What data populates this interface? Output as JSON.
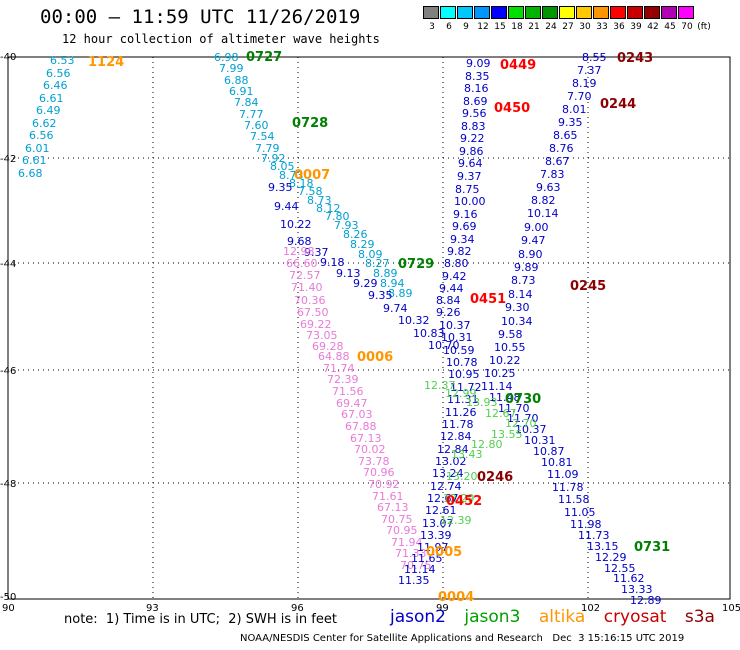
{
  "header": {
    "title": "00:00 – 11:59 UTC 11/26/2019",
    "subtitle": "12 hour collection of altimeter wave heights"
  },
  "colorbar": {
    "labels": [
      "3",
      "6",
      "9",
      "12",
      "15",
      "18",
      "21",
      "24",
      "27",
      "30",
      "33",
      "36",
      "39",
      "42",
      "45",
      "70",
      "(ft)"
    ],
    "colors": [
      "#808080",
      "#00ffff",
      "#00c8ff",
      "#0096ff",
      "#0000ff",
      "#00e000",
      "#00b400",
      "#009600",
      "#ffff00",
      "#ffc800",
      "#ff9600",
      "#ff0000",
      "#c80000",
      "#960000",
      "#b400b4",
      "#ff00ff",
      "#ffffff"
    ]
  },
  "axes": {
    "lat_labels": [
      "-40",
      "-42",
      "-44",
      "-46",
      "-48",
      "-50"
    ],
    "lon_labels": [
      "90",
      "93",
      "96",
      "99",
      "102",
      "105"
    ]
  },
  "colors": {
    "jason2": "#0000c8",
    "jason3": "#00a000",
    "altika": "#ff9600",
    "cryosat": "#c80000",
    "s3a": "#8b0000",
    "cyan": "#00a0d0",
    "pink": "#e87ad8",
    "lightgreen": "#50d050",
    "darkgreen": "#008000"
  },
  "time_tags": [
    {
      "text": "1124",
      "color": "#ff9600"
    },
    {
      "text": "0727",
      "color": "#008000"
    },
    {
      "text": "0728",
      "color": "#008000"
    },
    {
      "text": "0007",
      "color": "#ff9600"
    },
    {
      "text": "0729",
      "color": "#008000"
    },
    {
      "text": "0006",
      "color": "#ff9600"
    },
    {
      "text": "0449",
      "color": "#ff0000"
    },
    {
      "text": "0450",
      "color": "#ff0000"
    },
    {
      "text": "0451",
      "color": "#ff0000"
    },
    {
      "text": "0452",
      "color": "#ff0000"
    },
    {
      "text": "0243",
      "color": "#8b0000"
    },
    {
      "text": "0244",
      "color": "#8b0000"
    },
    {
      "text": "0245",
      "color": "#8b0000"
    },
    {
      "text": "0246",
      "color": "#8b0000"
    },
    {
      "text": "0730",
      "color": "#008000"
    },
    {
      "text": "0731",
      "color": "#008000"
    },
    {
      "text": "0005",
      "color": "#ff9600"
    },
    {
      "text": "0004",
      "color": "#ff9600"
    }
  ],
  "tracks": {
    "cyan_left": [
      "6.53",
      "6.56",
      "6.46",
      "6.61",
      "6.49",
      "6.62",
      "6.56",
      "6.01",
      "6.61",
      "6.68"
    ],
    "cyan_diag": [
      "6.98",
      "7.99",
      "6.88",
      "6.91",
      "7.84",
      "7.77",
      "7.60",
      "7.54",
      "7.79",
      "7.92",
      "8.05",
      "8.73",
      "8.18",
      "7.58",
      "8.73",
      "8.12",
      "7.80",
      "7.93",
      "8.26",
      "8.29",
      "8.09",
      "8.27",
      "8.89",
      "8.94",
      "8.89"
    ],
    "blue_diag": [
      "9.35",
      "9.44",
      "10.22",
      "9.68",
      "9.37",
      "9.18",
      "9.13",
      "9.29",
      "9.35",
      "9.74",
      "10.32",
      "10.83",
      "10.70"
    ],
    "pink_track": [
      "12.98",
      "66.60",
      "72.57",
      "71.40",
      "70.36",
      "67.50",
      "69.22",
      "73.05",
      "69.28",
      "64.88",
      "71.74",
      "72.39",
      "71.56",
      "69.47",
      "67.03",
      "67.88",
      "67.13",
      "70.02",
      "73.78",
      "70.96",
      "70.92",
      "71.61",
      "67.13",
      "70.75",
      "70.95",
      "71.94",
      "71.33",
      "70.75"
    ],
    "center_blue": [
      "9.09",
      "8.35",
      "8.16",
      "8.69",
      "9.56",
      "8.83",
      "9.22",
      "9.86",
      "9.64",
      "9.37",
      "8.75",
      "10.00",
      "9.16",
      "9.69",
      "9.34",
      "9.82",
      "8.80",
      "9.42",
      "9.44",
      "8.84",
      "9.26",
      "10.37",
      "10.31",
      "10.59",
      "10.78",
      "10.95",
      "11.72",
      "11.31",
      "11.26",
      "11.78",
      "12.84",
      "12.84",
      "13.02",
      "13.24",
      "12.74",
      "12.67",
      "12.61",
      "13.07",
      "13.39",
      "11.97",
      "11.65",
      "11.14",
      "11.35"
    ],
    "right_track": [
      "8.55",
      "7.37",
      "8.19",
      "7.70",
      "8.01",
      "9.35",
      "8.65",
      "8.76",
      "8.67",
      "7.83",
      "9.63",
      "8.82",
      "10.14",
      "9.00",
      "9.47",
      "8.90",
      "9.89",
      "8.73",
      "8.14",
      "9.30",
      "10.34",
      "9.58",
      "10.55",
      "10.22",
      "10.25",
      "11.14",
      "11.48",
      "11.70",
      "11.70",
      "10.37",
      "10.31",
      "10.87",
      "10.81",
      "11.09",
      "11.78",
      "11.58",
      "11.05",
      "11.98",
      "11.73",
      "13.15",
      "12.29",
      "12.55",
      "11.62",
      "13.33",
      "12.89"
    ],
    "green_track": [
      "12.37",
      "12.99",
      "13.93",
      "12.67",
      "12.70",
      "13.55",
      "12.80",
      "13.43",
      "13.20",
      "12.29",
      "12.39"
    ]
  },
  "note": "note:  1) Time is in UTC;  2) SWH is in feet",
  "legend": {
    "jason2": "jason2",
    "jason3": "jason3",
    "altika": "altika",
    "cryosat": "cryosat",
    "s3a": "s3a"
  },
  "footer": "NOAA/NESDIS Center for Satellite Applications and Research   Dec  3 15:16:15 UTC 2019"
}
